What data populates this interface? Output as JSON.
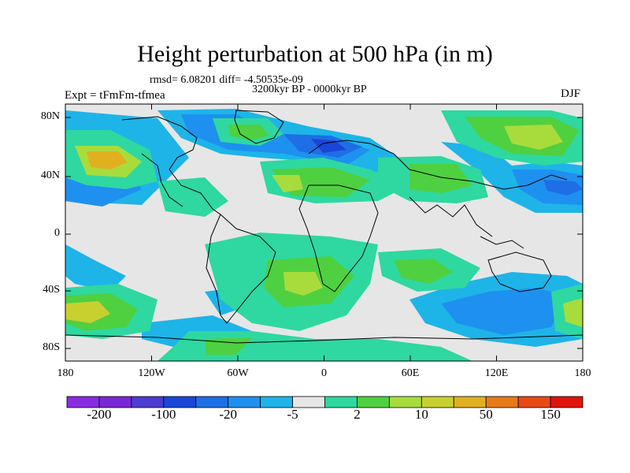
{
  "title": "Height perturbation at 500 hPa (in m)",
  "stats": "rmsd= 6.08201 diff= -4.50535e-09",
  "period": "3200kyr BP - 0000kyr BP",
  "experiment": "Expt = tFmFm-tfmea",
  "season": "DJF",
  "y_ticks": [
    "80N",
    "40N",
    "0",
    "40S",
    "80S"
  ],
  "x_ticks": [
    "180",
    "120W",
    "60W",
    "0",
    "60E",
    "120E",
    "180"
  ],
  "colorbar": {
    "colors": [
      "#8a2be2",
      "#7a28d6",
      "#4c3cd0",
      "#1a46d8",
      "#1e6ee6",
      "#1e90ef",
      "#1eb4e8",
      "#e6e6e6",
      "#2ed8a0",
      "#4fd040",
      "#a8dc3c",
      "#c8d030",
      "#e0b020",
      "#e87a18",
      "#e84a14",
      "#e0140a"
    ],
    "labels": [
      "-200",
      "-100",
      "-20",
      "-5",
      "2",
      "10",
      "50",
      "150"
    ]
  },
  "map_colors": {
    "neutral": "#e6e6e6",
    "neg1": "#1eb4e8",
    "neg2": "#1e90ef",
    "neg3": "#1e6ee6",
    "neg4": "#1a46d8",
    "pos1": "#2ed8a0",
    "pos2": "#4fd040",
    "pos3": "#a8dc3c",
    "pos4": "#c8d030",
    "pos5": "#e0b020"
  }
}
